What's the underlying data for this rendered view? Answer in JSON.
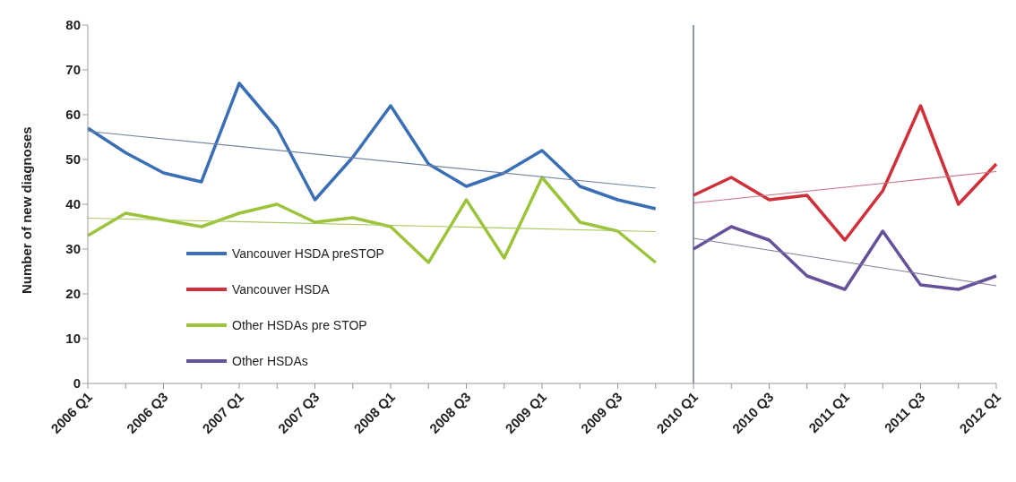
{
  "chart_data": {
    "type": "line",
    "ylabel": "Number of new diagnoses",
    "categories": [
      "2006 Q1",
      null,
      "2006 Q3",
      null,
      "2007 Q1",
      null,
      "2007 Q3",
      null,
      "2008 Q1",
      null,
      "2008 Q3",
      null,
      "2009 Q1",
      null,
      "2009 Q3",
      null,
      "2010 Q1",
      null,
      "2010 Q3",
      null,
      "2011 Q1",
      null,
      "2011 Q3",
      null,
      "2012 Q1"
    ],
    "series": [
      {
        "name": "Vancouver HSDA preSTOP",
        "color": "#3a6fb5",
        "values": [
          57,
          51.5,
          47,
          45,
          67,
          57,
          41,
          50.5,
          62,
          49,
          44,
          47,
          52,
          44,
          41,
          39,
          null,
          null,
          null,
          null,
          null,
          null,
          null,
          null,
          null
        ]
      },
      {
        "name": "Vancouver HSDA",
        "color": "#d0303a",
        "values": [
          null,
          null,
          null,
          null,
          null,
          null,
          null,
          null,
          null,
          null,
          null,
          null,
          null,
          null,
          null,
          null,
          42,
          46,
          41,
          42,
          32,
          43,
          62,
          40,
          49
        ]
      },
      {
        "name": "Other HSDAs pre STOP",
        "color": "#9bc43a",
        "values": [
          33,
          38,
          36.5,
          35,
          38,
          40,
          36,
          37,
          35,
          27,
          41,
          28,
          46,
          36,
          34,
          27,
          null,
          null,
          null,
          null,
          null,
          null,
          null,
          null,
          null
        ]
      },
      {
        "name": "Other HSDAs",
        "color": "#65509a",
        "values": [
          null,
          null,
          null,
          null,
          null,
          null,
          null,
          null,
          null,
          null,
          null,
          null,
          null,
          null,
          null,
          null,
          30,
          35,
          32,
          24,
          21,
          34,
          22,
          21,
          24
        ]
      },
      {
        "color": "#7585a5",
        "values": [
          56.3,
          null,
          null,
          null,
          null,
          null,
          null,
          null,
          null,
          null,
          null,
          null,
          null,
          null,
          null,
          43.6,
          null,
          null,
          null,
          null,
          null,
          null,
          null,
          null,
          null
        ]
      },
      {
        "color": "#a8c860",
        "values": [
          36.9,
          null,
          null,
          null,
          null,
          null,
          null,
          null,
          null,
          null,
          null,
          null,
          null,
          null,
          null,
          33.9,
          null,
          null,
          null,
          null,
          null,
          null,
          null,
          null,
          null
        ]
      },
      {
        "color": "#c87080",
        "values": [
          null,
          null,
          null,
          null,
          null,
          null,
          null,
          null,
          null,
          null,
          null,
          null,
          null,
          null,
          null,
          null,
          40.3,
          null,
          null,
          null,
          null,
          null,
          null,
          null,
          47.3
        ]
      },
      {
        "color": "#8a7a9a",
        "values": [
          null,
          null,
          null,
          null,
          null,
          null,
          null,
          null,
          null,
          null,
          null,
          null,
          null,
          null,
          null,
          null,
          32.4,
          null,
          null,
          null,
          null,
          null,
          null,
          null,
          21.8
        ]
      }
    ],
    "ylim": [
      0,
      80
    ],
    "yticks": [
      0,
      10,
      20,
      30,
      40,
      50,
      60,
      70,
      80
    ],
    "ref_lines": [
      {
        "axis": "x",
        "value": "2010 Q1",
        "color": "#8a9aaa"
      }
    ],
    "grid": false,
    "legend": "left",
    "marker": "none",
    "line_style": "solid"
  }
}
